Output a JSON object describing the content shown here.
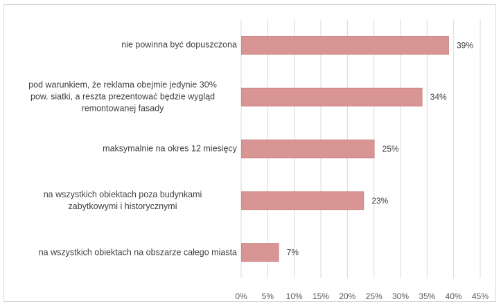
{
  "chart_data": {
    "type": "bar",
    "orientation": "horizontal",
    "title": "",
    "xlabel": "",
    "ylabel": "",
    "xlim": [
      0,
      45
    ],
    "x_ticks": [
      "0%",
      "5%",
      "10%",
      "15%",
      "20%",
      "25%",
      "30%",
      "35%",
      "40%",
      "45%"
    ],
    "categories": [
      "nie powinna być dopuszczona",
      "pod warunkiem, że reklama obejmie jedynie 30% pow. siatki, a reszta prezentować będzie wygląd remontowanej fasady",
      "maksymalnie na okres 12 miesięcy",
      "na wszystkich obiektach poza budynkami zabytkowymi i historycznymi",
      "na wszystkich obiektach na obszarze całego miasta"
    ],
    "category_lines": [
      [
        "nie powinna być dopuszczona"
      ],
      [
        "pod warunkiem, że reklama obejmie jedynie 30%",
        "pow. siatki, a reszta prezentować będzie wygląd",
        "remontowanej fasady"
      ],
      [
        "maksymalnie na okres 12 miesięcy"
      ],
      [
        "na wszystkich obiektach poza budynkami",
        "zabytkowymi i historycznymi"
      ],
      [
        "na wszystkich obiektach na obszarze całego miasta"
      ]
    ],
    "values": [
      39,
      34,
      25,
      23,
      7
    ],
    "data_labels": [
      "39%",
      "34%",
      "25%",
      "23%",
      "7%"
    ],
    "bar_color": "#d99594",
    "bar_border": "#c9807f",
    "grid": "vertical",
    "grid_color": "#d9d9d9",
    "legend": "none"
  }
}
